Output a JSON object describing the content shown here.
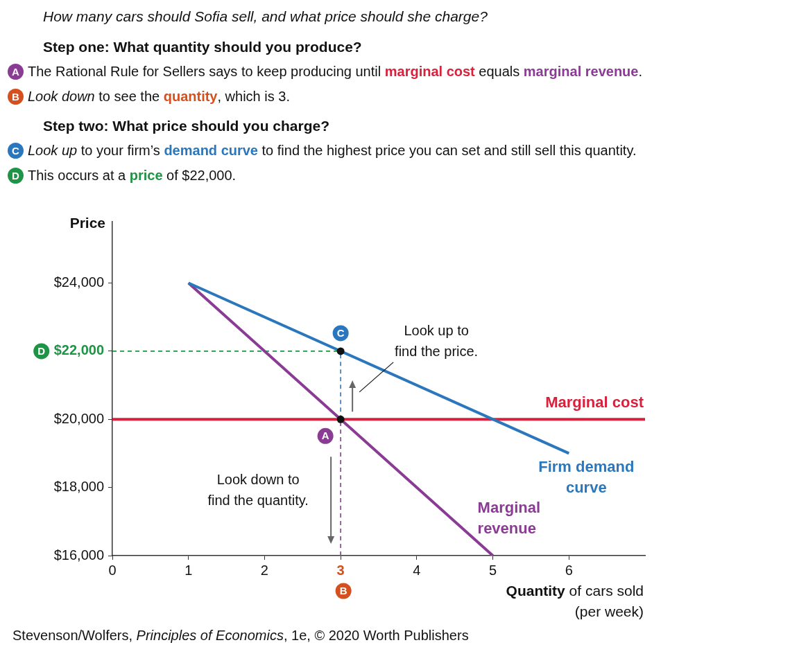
{
  "header": {
    "question": "How many cars should Sofia sell, and what price should she charge?",
    "steps": [
      {
        "title": "Step one: What quantity should you produce?",
        "items": [
          {
            "badge": "A",
            "segments": [
              {
                "text": "The Rational Rule for Sellers says to keep producing until "
              },
              {
                "text": "marginal cost",
                "color": "#d7213d",
                "style": "bold"
              },
              {
                "text": " equals "
              },
              {
                "text": "marginal revenue",
                "color": "#8a3b93",
                "style": "bold"
              },
              {
                "text": "."
              }
            ]
          },
          {
            "badge": "B",
            "segments": [
              {
                "text": "Look down",
                "style": "italic"
              },
              {
                "text": " to see the "
              },
              {
                "text": "quantity",
                "color": "#d4501f",
                "style": "bold"
              },
              {
                "text": ", which is 3."
              }
            ]
          }
        ]
      },
      {
        "title": "Step two: What price should you charge?",
        "items": [
          {
            "badge": "C",
            "segments": [
              {
                "text": "Look up",
                "style": "italic"
              },
              {
                "text": " to your firm’s "
              },
              {
                "text": "demand curve",
                "color": "#2a77bd",
                "style": "bold"
              },
              {
                "text": " to find the highest price you can set and still sell this quantity."
              }
            ]
          },
          {
            "badge": "D",
            "segments": [
              {
                "text": "This occurs at a "
              },
              {
                "text": "price",
                "color": "#1f9346",
                "style": "bold"
              },
              {
                "text": " of $22,000."
              }
            ]
          }
        ]
      }
    ]
  },
  "chart_data": {
    "type": "line",
    "y_label": "Price",
    "x_label": [
      [
        {
          "text": "Quantity",
          "style": "bold"
        },
        {
          "text": " of cars sold"
        }
      ],
      [
        {
          "text": "(per week)"
        }
      ]
    ],
    "xlim": [
      0,
      7
    ],
    "xticks": [
      0,
      1,
      2,
      3,
      4,
      5,
      6
    ],
    "ylim": [
      16000,
      25800
    ],
    "yticks": [
      {
        "value": 16000,
        "label": "$16,000"
      },
      {
        "value": 18000,
        "label": "$18,000"
      },
      {
        "value": 20000,
        "label": "$20,000"
      },
      {
        "value": 22000,
        "label": "$22,000"
      },
      {
        "value": 24000,
        "label": "$24,000"
      }
    ],
    "grid": false,
    "series": [
      {
        "name": "Firm demand curve",
        "color": "#2a77bd",
        "x": [
          1,
          6
        ],
        "values": [
          24000,
          19000
        ]
      },
      {
        "name": "Marginal revenue",
        "color": "#8a3b93",
        "x": [
          1,
          5
        ],
        "values": [
          24000,
          16000
        ]
      },
      {
        "name": "Marginal cost",
        "color": "#d7213d",
        "x": [
          0,
          7
        ],
        "values": [
          20000,
          20000
        ]
      }
    ],
    "optimum": {
      "quantity": 3,
      "marginal_cost": 20000,
      "price": 22000
    },
    "badges": {
      "intersection": {
        "label": "A",
        "color": "#8a3b93"
      },
      "quantity": {
        "label": "B",
        "color": "#d4501f"
      },
      "demand_point": {
        "label": "C",
        "color": "#2a77bd"
      },
      "price": {
        "label": "D",
        "color": "#1f9346"
      }
    },
    "arrows": [
      {
        "direction": "up",
        "text": [
          "Look up to",
          "find the price."
        ]
      },
      {
        "direction": "down",
        "text": [
          "Look down to",
          "find the quantity."
        ]
      }
    ]
  },
  "source": [
    {
      "text": "Stevenson/Wolfers, "
    },
    {
      "text": "Principles of Economics",
      "style": "italic"
    },
    {
      "text": ", 1e, © 2020 Worth Publishers"
    }
  ]
}
